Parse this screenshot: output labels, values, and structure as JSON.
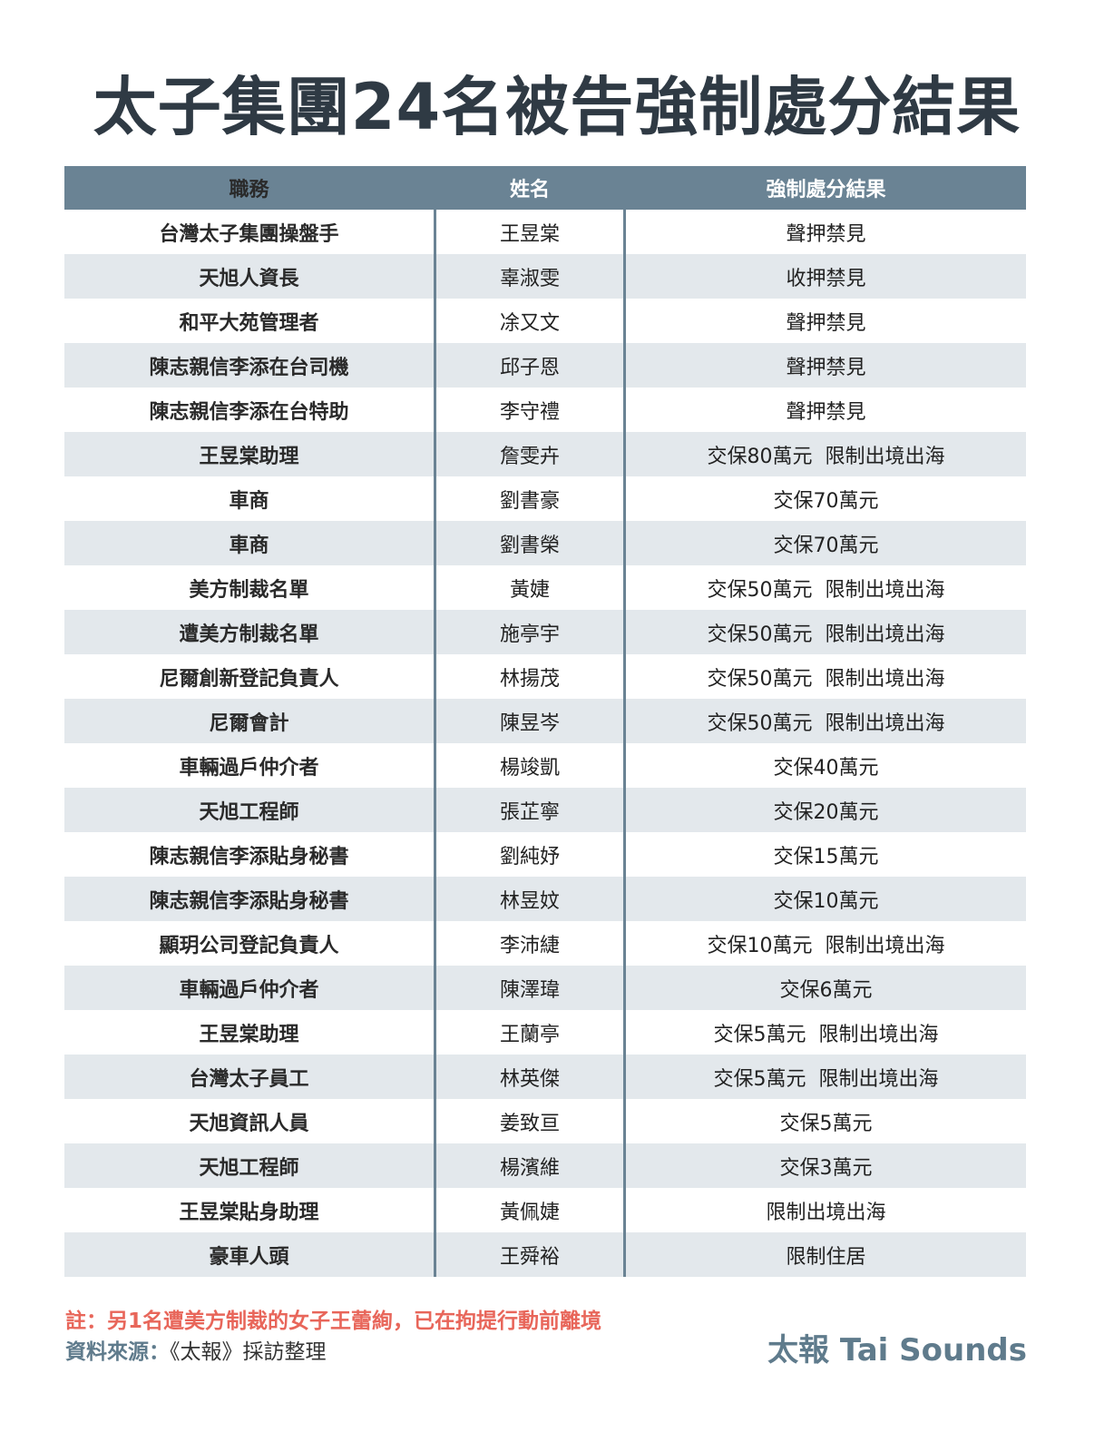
{
  "title": "太子集團24名被告強制處分結果",
  "table": {
    "headers": [
      "職務",
      "姓名",
      "強制處分結果"
    ],
    "rows": [
      [
        "台灣太子集團操盤手",
        "王昱棠",
        "聲押禁見"
      ],
      [
        "天旭人資長",
        "辜淑雯",
        "收押禁見"
      ],
      [
        "和平大苑管理者",
        "凃又文",
        "聲押禁見"
      ],
      [
        "陳志親信李添在台司機",
        "邱子恩",
        "聲押禁見"
      ],
      [
        "陳志親信李添在台特助",
        "李守禮",
        "聲押禁見"
      ],
      [
        "王昱棠助理",
        "詹雯卉",
        "交保80萬元  限制出境出海"
      ],
      [
        "車商",
        "劉書豪",
        "交保70萬元"
      ],
      [
        "車商",
        "劉書榮",
        "交保70萬元"
      ],
      [
        "美方制裁名單",
        "黃婕",
        "交保50萬元  限制出境出海"
      ],
      [
        "遭美方制裁名單",
        "施亭宇",
        "交保50萬元  限制出境出海"
      ],
      [
        "尼爾創新登記負責人",
        "林揚茂",
        "交保50萬元  限制出境出海"
      ],
      [
        "尼爾會計",
        "陳昱岑",
        "交保50萬元  限制出境出海"
      ],
      [
        "車輛過戶仲介者",
        "楊竣凱",
        "交保40萬元"
      ],
      [
        "天旭工程師",
        "張芷寧",
        "交保20萬元"
      ],
      [
        "陳志親信李添貼身秘書",
        "劉純妤",
        "交保15萬元"
      ],
      [
        "陳志親信李添貼身秘書",
        "林昱妏",
        "交保10萬元"
      ],
      [
        "顯玥公司登記負責人",
        "李沛緁",
        "交保10萬元  限制出境出海"
      ],
      [
        "車輛過戶仲介者",
        "陳澤瑋",
        "交保6萬元"
      ],
      [
        "王昱棠助理",
        "王蘭亭",
        "交保5萬元  限制出境出海"
      ],
      [
        "台灣太子員工",
        "林英傑",
        "交保5萬元  限制出境出海"
      ],
      [
        "天旭資訊人員",
        "姜致亘",
        "交保5萬元"
      ],
      [
        "天旭工程師",
        "楊濱維",
        "交保3萬元"
      ],
      [
        "王昱棠貼身助理",
        "黃佩婕",
        "限制出境出海"
      ],
      [
        "豪車人頭",
        "王舜裕",
        "限制住居"
      ]
    ]
  },
  "footer": {
    "note": "註：另1名遭美方制裁的女子王蕾絢，已在拘提行動前離境",
    "source_label": "資料來源：",
    "source_text": "《太報》採訪整理",
    "logo": "太報 Tai Sounds"
  },
  "colors": {
    "header": "#6a8394",
    "alt_row": "#e3e8ec",
    "note": "#e8665a",
    "title": "#2f3a44"
  }
}
